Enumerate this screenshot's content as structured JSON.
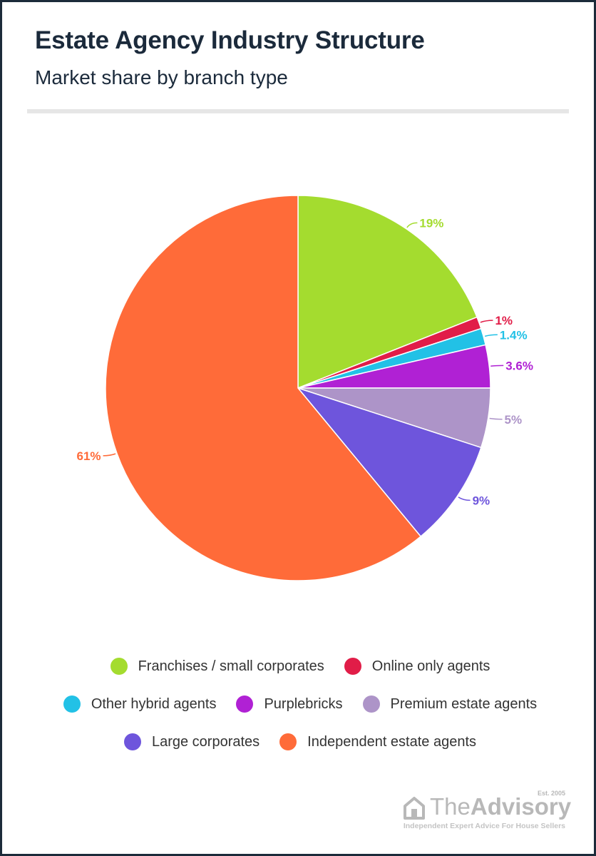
{
  "header": {
    "title": "Estate Agency Industry Structure",
    "subtitle": "Market share by branch type"
  },
  "chart_data": {
    "type": "pie",
    "title": "Estate Agency Industry Structure",
    "subtitle": "Market share by branch type",
    "start_angle_deg": 0,
    "direction": "clockwise",
    "slices": [
      {
        "name": "Franchises / small corporates",
        "value": 19,
        "label": "19%",
        "color": "#a4dc2f"
      },
      {
        "name": "Online only agents",
        "value": 1,
        "label": "1%",
        "color": "#e11d48"
      },
      {
        "name": "Other hybrid agents",
        "value": 1.4,
        "label": "1.4%",
        "color": "#22c1e6"
      },
      {
        "name": "Purplebricks",
        "value": 3.6,
        "label": "3.6%",
        "color": "#b021d4"
      },
      {
        "name": "Premium estate agents",
        "value": 5,
        "label": "5%",
        "color": "#ad94c8"
      },
      {
        "name": "Large corporates",
        "value": 9,
        "label": "9%",
        "color": "#6e55dc"
      },
      {
        "name": "Independent estate agents",
        "value": 61,
        "label": "61%",
        "color": "#ff6b39"
      }
    ],
    "legend_position": "bottom"
  },
  "legend": {
    "rows": [
      [
        {
          "label": "Franchises / small corporates",
          "color": "#a4dc2f"
        },
        {
          "label": "Online only agents",
          "color": "#e11d48"
        }
      ],
      [
        {
          "label": "Other hybrid agents",
          "color": "#22c1e6"
        },
        {
          "label": "Purplebricks",
          "color": "#b021d4"
        },
        {
          "label": "Premium estate agents",
          "color": "#ad94c8"
        }
      ],
      [
        {
          "label": "Large corporates",
          "color": "#6e55dc"
        },
        {
          "label": "Independent estate agents",
          "color": "#ff6b39"
        }
      ]
    ]
  },
  "logo": {
    "name_light": "The",
    "name_bold": "Advisory",
    "est": "Est. 2005",
    "tagline": "Independent Expert Advice For House Sellers",
    "icon": "house-icon",
    "color": "#b8b8b8"
  }
}
